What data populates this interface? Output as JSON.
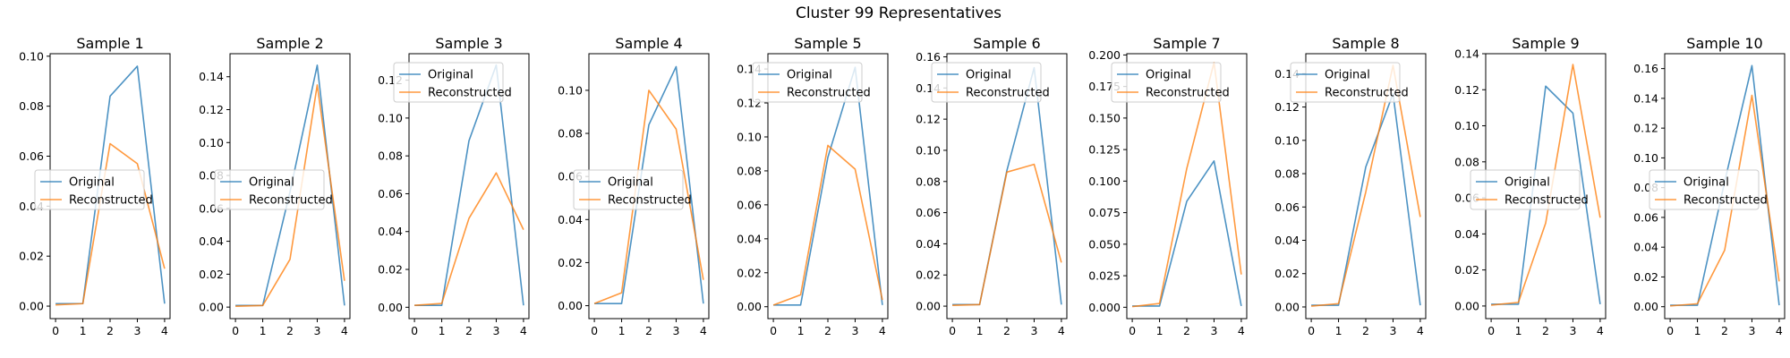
{
  "figure": {
    "suptitle": "Cluster 99 Representatives"
  },
  "colors": {
    "original": "#1f77b4",
    "reconstructed": "#ff7f0e"
  },
  "chart_data": [
    {
      "type": "line",
      "title": "Sample 1",
      "x": [
        0,
        1,
        2,
        3,
        4
      ],
      "ylim": [
        -0.005,
        0.101
      ],
      "yticks": [
        "0.00",
        "0.02",
        "0.04",
        "0.06",
        "0.08",
        "0.10"
      ],
      "ytick_values": [
        0,
        0.02,
        0.04,
        0.06,
        0.08,
        0.1
      ],
      "xticks": [
        "0",
        "1",
        "2",
        "3",
        "4"
      ],
      "legend_position": "center-left",
      "series": [
        {
          "name": "Original",
          "values": [
            0.001,
            0.001,
            0.084,
            0.096,
            0.001
          ]
        },
        {
          "name": "Reconstructed",
          "values": [
            0.0005,
            0.001,
            0.065,
            0.057,
            0.015
          ]
        }
      ]
    },
    {
      "type": "line",
      "title": "Sample 2",
      "x": [
        0,
        1,
        2,
        3,
        4
      ],
      "ylim": [
        -0.007,
        0.154
      ],
      "yticks": [
        "0.00",
        "0.02",
        "0.04",
        "0.06",
        "0.08",
        "0.10",
        "0.12",
        "0.14"
      ],
      "ytick_values": [
        0,
        0.02,
        0.04,
        0.06,
        0.08,
        0.1,
        0.12,
        0.14
      ],
      "xticks": [
        "0",
        "1",
        "2",
        "3",
        "4"
      ],
      "legend_position": "center-left",
      "series": [
        {
          "name": "Original",
          "values": [
            0.001,
            0.001,
            0.07,
            0.147,
            0.001
          ]
        },
        {
          "name": "Reconstructed",
          "values": [
            0.0005,
            0.001,
            0.029,
            0.135,
            0.016
          ]
        }
      ]
    },
    {
      "type": "line",
      "title": "Sample 3",
      "x": [
        0,
        1,
        2,
        3,
        4
      ],
      "ylim": [
        -0.006,
        0.134
      ],
      "yticks": [
        "0.00",
        "0.02",
        "0.04",
        "0.06",
        "0.08",
        "0.10",
        "0.12"
      ],
      "ytick_values": [
        0,
        0.02,
        0.04,
        0.06,
        0.08,
        0.1,
        0.12
      ],
      "xticks": [
        "0",
        "1",
        "2",
        "3",
        "4"
      ],
      "legend_position": "top-left",
      "series": [
        {
          "name": "Original",
          "values": [
            0.001,
            0.001,
            0.088,
            0.128,
            0.001
          ]
        },
        {
          "name": "Reconstructed",
          "values": [
            0.001,
            0.002,
            0.047,
            0.071,
            0.041
          ]
        }
      ]
    },
    {
      "type": "line",
      "title": "Sample 4",
      "x": [
        0,
        1,
        2,
        3,
        4
      ],
      "ylim": [
        -0.006,
        0.117
      ],
      "yticks": [
        "0.00",
        "0.02",
        "0.04",
        "0.06",
        "0.08",
        "0.10"
      ],
      "ytick_values": [
        0,
        0.02,
        0.04,
        0.06,
        0.08,
        0.1
      ],
      "xticks": [
        "0",
        "1",
        "2",
        "3",
        "4"
      ],
      "legend_position": "center-left",
      "series": [
        {
          "name": "Original",
          "values": [
            0.001,
            0.001,
            0.084,
            0.111,
            0.001
          ]
        },
        {
          "name": "Reconstructed",
          "values": [
            0.001,
            0.006,
            0.1,
            0.082,
            0.012
          ]
        }
      ]
    },
    {
      "type": "line",
      "title": "Sample 5",
      "x": [
        0,
        1,
        2,
        3,
        4
      ],
      "ylim": [
        -0.007,
        0.149
      ],
      "yticks": [
        "0.00",
        "0.02",
        "0.04",
        "0.06",
        "0.08",
        "0.10",
        "0.12",
        "0.14"
      ],
      "ytick_values": [
        0,
        0.02,
        0.04,
        0.06,
        0.08,
        0.1,
        0.12,
        0.14
      ],
      "xticks": [
        "0",
        "1",
        "2",
        "3",
        "4"
      ],
      "legend_position": "top-left",
      "series": [
        {
          "name": "Original",
          "values": [
            0.001,
            0.001,
            0.088,
            0.141,
            0.001
          ]
        },
        {
          "name": "Reconstructed",
          "values": [
            0.001,
            0.007,
            0.095,
            0.081,
            0.004
          ]
        }
      ]
    },
    {
      "type": "line",
      "title": "Sample 6",
      "x": [
        0,
        1,
        2,
        3,
        4
      ],
      "ylim": [
        -0.008,
        0.162
      ],
      "yticks": [
        "0.00",
        "0.02",
        "0.04",
        "0.06",
        "0.08",
        "0.10",
        "0.12",
        "0.14",
        "0.16"
      ],
      "ytick_values": [
        0,
        0.02,
        0.04,
        0.06,
        0.08,
        0.1,
        0.12,
        0.14,
        0.16
      ],
      "xticks": [
        "0",
        "1",
        "2",
        "3",
        "4"
      ],
      "legend_position": "top-left",
      "series": [
        {
          "name": "Original",
          "values": [
            0.001,
            0.001,
            0.087,
            0.153,
            0.001
          ]
        },
        {
          "name": "Reconstructed",
          "values": [
            0.0005,
            0.001,
            0.086,
            0.091,
            0.028
          ]
        }
      ]
    },
    {
      "type": "line",
      "title": "Sample 7",
      "x": [
        0,
        1,
        2,
        3,
        4
      ],
      "ylim": [
        -0.009,
        0.201
      ],
      "yticks": [
        "0.000",
        "0.025",
        "0.050",
        "0.075",
        "0.100",
        "0.125",
        "0.150",
        "0.175",
        "0.200"
      ],
      "ytick_values": [
        0,
        0.025,
        0.05,
        0.075,
        0.1,
        0.125,
        0.15,
        0.175,
        0.2
      ],
      "xticks": [
        "0",
        "1",
        "2",
        "3",
        "4"
      ],
      "legend_position": "top-left",
      "series": [
        {
          "name": "Original",
          "values": [
            0.001,
            0.001,
            0.084,
            0.116,
            0.001
          ]
        },
        {
          "name": "Reconstructed",
          "values": [
            0.0005,
            0.003,
            0.11,
            0.194,
            0.026
          ]
        }
      ]
    },
    {
      "type": "line",
      "title": "Sample 8",
      "x": [
        0,
        1,
        2,
        3,
        4
      ],
      "ylim": [
        -0.007,
        0.152
      ],
      "yticks": [
        "0.00",
        "0.02",
        "0.04",
        "0.06",
        "0.08",
        "0.10",
        "0.12",
        "0.14"
      ],
      "ytick_values": [
        0,
        0.02,
        0.04,
        0.06,
        0.08,
        0.1,
        0.12,
        0.14
      ],
      "xticks": [
        "0",
        "1",
        "2",
        "3",
        "4"
      ],
      "legend_position": "top-left",
      "series": [
        {
          "name": "Original",
          "values": [
            0.001,
            0.001,
            0.084,
            0.128,
            0.001
          ]
        },
        {
          "name": "Reconstructed",
          "values": [
            0.0005,
            0.002,
            0.069,
            0.145,
            0.054
          ]
        }
      ]
    },
    {
      "type": "line",
      "title": "Sample 9",
      "x": [
        0,
        1,
        2,
        3,
        4
      ],
      "ylim": [
        -0.007,
        0.14
      ],
      "yticks": [
        "0.00",
        "0.02",
        "0.04",
        "0.06",
        "0.08",
        "0.10",
        "0.12",
        "0.14"
      ],
      "ytick_values": [
        0,
        0.02,
        0.04,
        0.06,
        0.08,
        0.1,
        0.12,
        0.14
      ],
      "xticks": [
        "0",
        "1",
        "2",
        "3",
        "4"
      ],
      "legend_position": "center-left",
      "series": [
        {
          "name": "Original",
          "values": [
            0.001,
            0.001,
            0.122,
            0.107,
            0.001
          ]
        },
        {
          "name": "Reconstructed",
          "values": [
            0.0005,
            0.002,
            0.046,
            0.134,
            0.049
          ]
        }
      ]
    },
    {
      "type": "line",
      "title": "Sample 10",
      "x": [
        0,
        1,
        2,
        3,
        4
      ],
      "ylim": [
        -0.008,
        0.17
      ],
      "yticks": [
        "0.00",
        "0.02",
        "0.04",
        "0.06",
        "0.08",
        "0.10",
        "0.12",
        "0.14",
        "0.16"
      ],
      "ytick_values": [
        0,
        0.02,
        0.04,
        0.06,
        0.08,
        0.1,
        0.12,
        0.14,
        0.16
      ],
      "xticks": [
        "0",
        "1",
        "2",
        "3",
        "4"
      ],
      "legend_position": "center-left",
      "series": [
        {
          "name": "Original",
          "values": [
            0.001,
            0.001,
            0.084,
            0.162,
            0.001
          ]
        },
        {
          "name": "Reconstructed",
          "values": [
            0.0005,
            0.002,
            0.038,
            0.142,
            0.017
          ]
        }
      ]
    }
  ]
}
